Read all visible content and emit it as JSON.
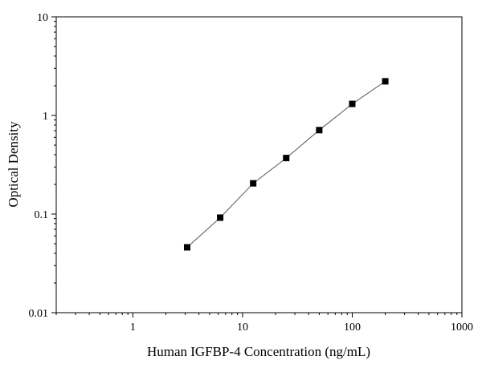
{
  "chart_data": {
    "type": "scatter",
    "title": "",
    "xlabel": "Human IGFBP-4 Concentration (ng/mL)",
    "ylabel": "Optical Density",
    "xscale": "log",
    "yscale": "log",
    "xlim": [
      0.2,
      1000
    ],
    "ylim": [
      0.01,
      10
    ],
    "x_ticks": [
      1,
      10,
      100,
      1000
    ],
    "x_tick_labels": [
      "1",
      "10",
      "100",
      "1000"
    ],
    "y_ticks": [
      0.01,
      0.1,
      1,
      10
    ],
    "y_tick_labels": [
      "0.01",
      "0.1",
      "1",
      "10"
    ],
    "grid": false,
    "legend": "none",
    "fit_line": true,
    "series": [
      {
        "x": [
          3.125,
          6.25,
          12.5,
          25,
          50,
          100,
          200
        ],
        "y": [
          0.046,
          0.092,
          0.205,
          0.37,
          0.71,
          1.31,
          2.22
        ]
      }
    ],
    "colors": {
      "marker": "#000000",
      "line": "#555555",
      "axis": "#000000"
    }
  }
}
